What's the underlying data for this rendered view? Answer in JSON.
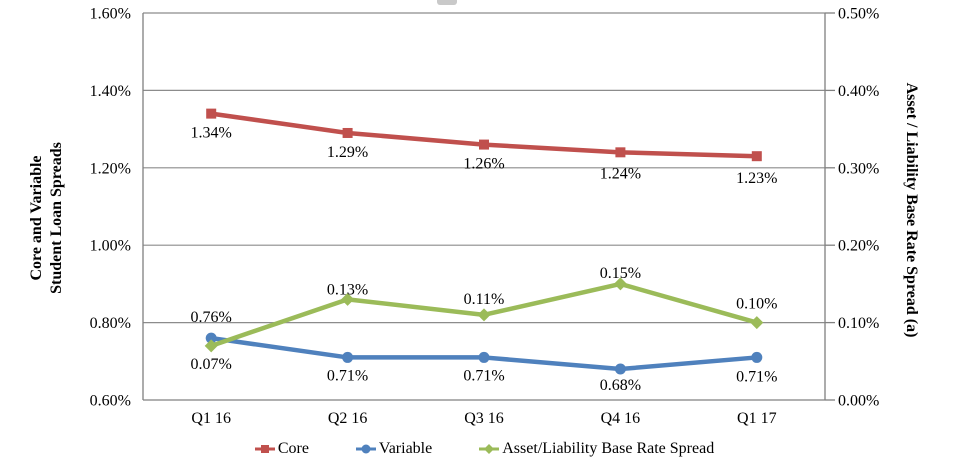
{
  "chart_data": {
    "type": "line",
    "categories": [
      "Q1 16",
      "Q2 16",
      "Q3 16",
      "Q4 16",
      "Q1 17"
    ],
    "series": [
      {
        "name": "Core",
        "axis": "left",
        "color": "#C0504D",
        "marker": "square",
        "values": [
          1.34,
          1.29,
          1.26,
          1.24,
          1.23
        ],
        "labels": [
          "1.34%",
          "1.29%",
          "1.26%",
          "1.24%",
          "1.23%"
        ],
        "label_offsets": [
          24,
          24,
          24,
          26,
          27
        ]
      },
      {
        "name": "Variable",
        "axis": "left",
        "color": "#4F81BD",
        "marker": "circle",
        "values": [
          0.76,
          0.71,
          0.71,
          0.68,
          0.71
        ],
        "labels": [
          "0.76%",
          "0.71%",
          "0.71%",
          "0.68%",
          "0.71%"
        ],
        "label_offsets": [
          -16,
          23,
          23,
          21,
          24
        ]
      },
      {
        "name": "Asset/Liability Base Rate Spread",
        "axis": "right",
        "color": "#9BBB59",
        "marker": "diamond",
        "values": [
          0.07,
          0.13,
          0.11,
          0.15,
          0.1
        ],
        "labels": [
          "0.07%",
          "0.13%",
          "0.11%",
          "0.15%",
          "0.10%"
        ],
        "label_offsets": [
          23,
          -5,
          -11,
          -6,
          -14
        ]
      }
    ],
    "left_axis": {
      "title_line1": "Core and Variable",
      "title_line2": "Student Loan Spreads",
      "min": 0.6,
      "max": 1.6,
      "tick_values": [
        0.6,
        0.8,
        1.0,
        1.2,
        1.4,
        1.6
      ],
      "tick_labels": [
        "0.60%",
        "0.80%",
        "1.00%",
        "1.20%",
        "1.40%",
        "1.60%"
      ]
    },
    "right_axis": {
      "title": "Asset / Liability Base Rate Spread (a)",
      "min": 0,
      "max": 0.5,
      "tick_values": [
        0,
        0.1,
        0.2,
        0.3,
        0.4,
        0.5
      ],
      "tick_labels": [
        "0.00%",
        "0.10%",
        "0.20%",
        "0.30%",
        "0.40%",
        "0.50%"
      ]
    },
    "legend": {
      "position": "bottom",
      "items": [
        {
          "label": "Core",
          "color": "#C0504D",
          "marker": "square"
        },
        {
          "label": "Variable",
          "color": "#4F81BD",
          "marker": "circle"
        },
        {
          "label": "Asset/Liability Base Rate Spread",
          "color": "#9BBB59",
          "marker": "diamond"
        }
      ]
    },
    "grid": true
  },
  "colors": {
    "gridline": "#8C8C8C",
    "axis": "#808080",
    "text": "#000000",
    "background": "#FFFFFF"
  }
}
